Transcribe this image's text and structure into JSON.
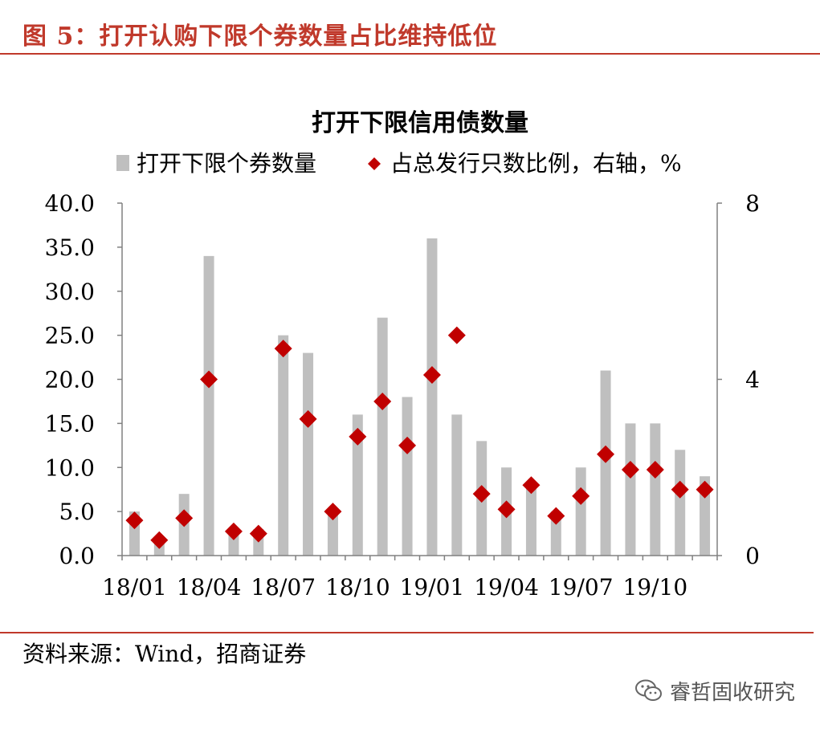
{
  "figure": {
    "title": "图 5：打开认购下限个券数量占比维持低位",
    "source": "资料来源：Wind，招商证券",
    "watermark": "睿哲固收研究",
    "watermark_icon": "wechat-icon",
    "title_color": "#c0392b",
    "rule_color": "#c0392b"
  },
  "chart_data": {
    "type": "bar",
    "title": "打开下限信用债数量",
    "categories": [
      "18/01",
      "18/02",
      "18/03",
      "18/04",
      "18/05",
      "18/06",
      "18/07",
      "18/08",
      "18/09",
      "18/10",
      "18/11",
      "18/12",
      "19/01",
      "19/02",
      "19/03",
      "19/04",
      "19/05",
      "19/06",
      "19/07",
      "19/08",
      "19/09",
      "19/10",
      "19/11",
      "19/12"
    ],
    "x_tick_labels": [
      "18/01",
      "18/04",
      "18/07",
      "18/10",
      "19/01",
      "19/04",
      "19/07",
      "19/10"
    ],
    "series": [
      {
        "name": "打开下限个券数量",
        "type": "bar",
        "axis": "left",
        "color": "#bfbfbf",
        "values": [
          5,
          2,
          7,
          34,
          3,
          3,
          25,
          23,
          5,
          16,
          27,
          18,
          36,
          16,
          13,
          10,
          8,
          5,
          10,
          21,
          15,
          15,
          12,
          9
        ]
      },
      {
        "name": "占总发行只数比例，右轴，%",
        "type": "scatter",
        "axis": "right",
        "color": "#c00000",
        "values": [
          0.8,
          0.35,
          0.85,
          4.0,
          0.55,
          0.5,
          4.7,
          3.1,
          1.0,
          2.7,
          3.5,
          2.5,
          4.1,
          5.0,
          1.4,
          1.05,
          1.6,
          0.9,
          1.35,
          2.3,
          1.95,
          1.95,
          1.5,
          1.5
        ]
      }
    ],
    "y_left": {
      "ylim": [
        0,
        40
      ],
      "ticks": [
        "0.0",
        "5.0",
        "10.0",
        "15.0",
        "20.0",
        "25.0",
        "30.0",
        "35.0",
        "40.0"
      ]
    },
    "y_right": {
      "ylim": [
        0,
        8
      ],
      "ticks": [
        "0",
        "4",
        "8"
      ]
    },
    "legend_position": "top",
    "grid": false
  }
}
